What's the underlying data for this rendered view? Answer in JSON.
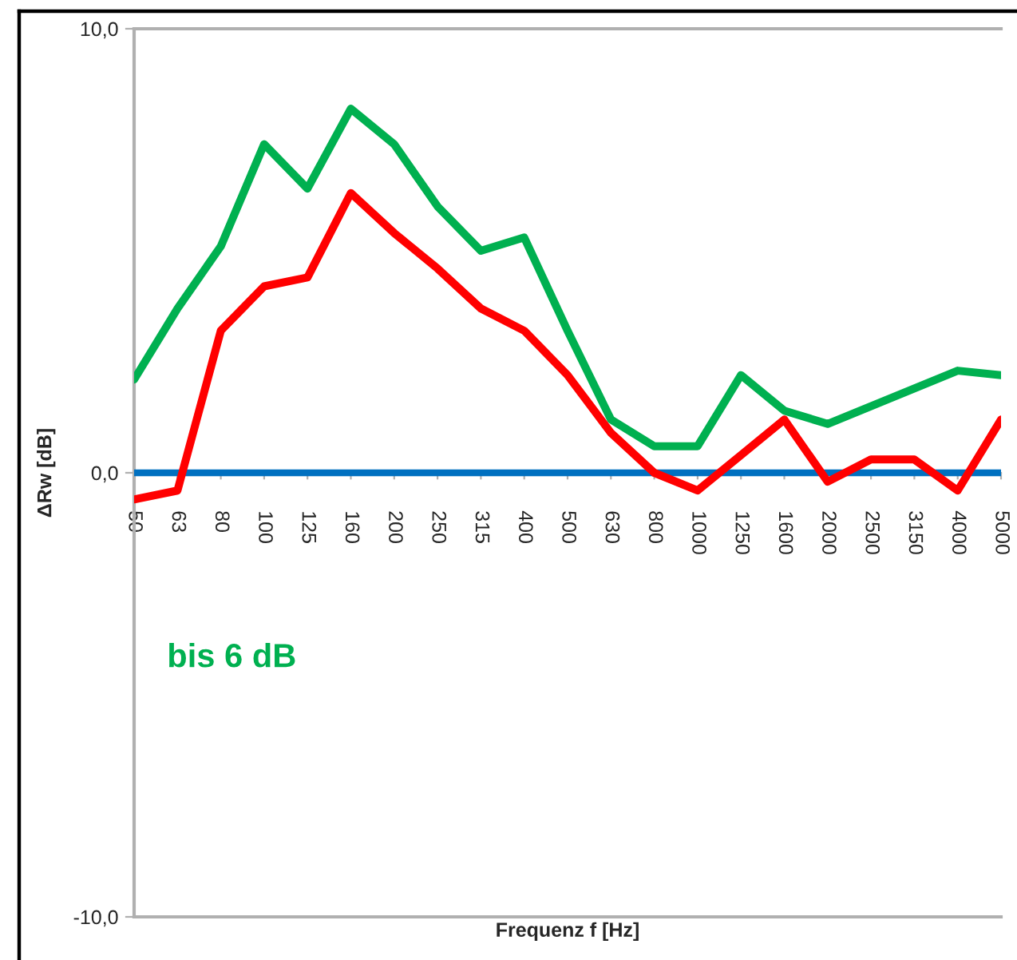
{
  "chart_data": {
    "type": "line",
    "xlabel": "Frequenz f [Hz]",
    "ylabel": "ΔRw [dB]",
    "annotations": [
      "bis 6 dB"
    ],
    "categories": [
      "50",
      "63",
      "80",
      "100",
      "125",
      "160",
      "200",
      "250",
      "315",
      "400",
      "500",
      "630",
      "800",
      "1000",
      "1250",
      "1600",
      "2000",
      "2500",
      "3150",
      "4000",
      "5000"
    ],
    "series": [
      {
        "color": "#00b050",
        "values": [
          2.1,
          3.7,
          5.1,
          7.4,
          6.4,
          8.2,
          7.4,
          6.0,
          5.0,
          5.3,
          3.2,
          1.2,
          0.6,
          0.6,
          2.2,
          1.4,
          1.1,
          1.5,
          1.9,
          2.3,
          2.2
        ]
      },
      {
        "color": "#ff0000",
        "values": [
          -0.6,
          -0.4,
          3.2,
          4.2,
          4.4,
          6.3,
          5.4,
          4.6,
          3.7,
          3.2,
          2.2,
          0.9,
          0.0,
          -0.4,
          0.4,
          1.2,
          -0.2,
          0.3,
          0.3,
          -0.4,
          1.2
        ]
      }
    ],
    "ylim": [
      -10,
      10
    ],
    "yticks": [
      {
        "value": -10,
        "label": "-10,0"
      },
      {
        "value": 0,
        "label": "0,0"
      },
      {
        "value": 10,
        "label": "10,0"
      }
    ],
    "ref_lines": [
      {
        "axis": "y",
        "value": 0,
        "color": "#0070c0"
      }
    ],
    "marker": "none",
    "line_style": "solid"
  }
}
